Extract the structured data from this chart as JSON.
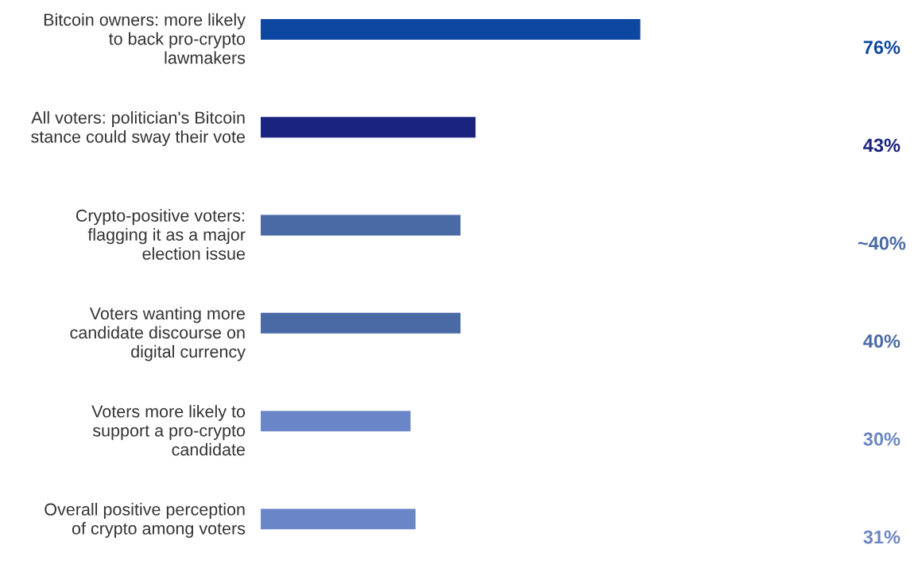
{
  "chart_data": {
    "type": "bar",
    "orientation": "horizontal",
    "categories": [
      "Bitcoin owners: more likely\nto back pro-crypto\nlawmakers",
      "All voters: politician's Bitcoin\nstance could sway their vote",
      "Crypto-positive voters:\nflagging it as a major\nelection issue",
      "Voters wanting more\ncandidate discourse on\ndigital currency",
      "Voters more likely to\nsupport a pro-crypto\ncandidate",
      "Overall positive perception\nof crypto among voters"
    ],
    "values": [
      76,
      43,
      40,
      40,
      30,
      31
    ],
    "colors": [
      "#0d47a1",
      "#1a237e",
      "#4a6aa5",
      "#4a6aa5",
      "#6b86c6",
      "#6b86c6"
    ],
    "value_labels": [
      "76%",
      "43%",
      "~40%",
      "40%",
      "30%",
      "31%"
    ]
  }
}
